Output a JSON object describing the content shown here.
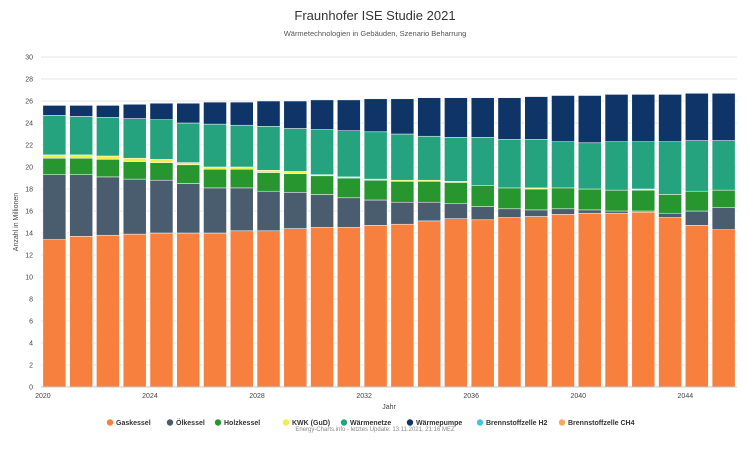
{
  "chart_data": {
    "type": "bar",
    "stacked": true,
    "title": "Fraunhofer ISE Studie 2021",
    "subtitle": "Wärmetechnologien in Gebäuden, Szenario Beharrung",
    "xlabel": "Jahr",
    "ylabel": "Anzahl in Millionen",
    "ylim": [
      0,
      30
    ],
    "yticks": [
      0,
      2,
      4,
      6,
      8,
      10,
      12,
      14,
      16,
      18,
      20,
      22,
      24,
      26,
      28,
      30
    ],
    "xtick_labels": [
      "2020",
      "2024",
      "2028",
      "2032",
      "2036",
      "2040",
      "2044"
    ],
    "grid": true,
    "legend_position": "bottom",
    "categories": [
      "2020",
      "2021",
      "2022",
      "2023",
      "2024",
      "2025",
      "2026",
      "2027",
      "2028",
      "2029",
      "2030",
      "2031",
      "2032",
      "2033",
      "2034",
      "2035",
      "2036",
      "2037",
      "2038",
      "2039",
      "2040",
      "2041",
      "2042",
      "2043",
      "2044",
      "2045"
    ],
    "series": [
      {
        "name": "Gaskessel",
        "color": "#f7803f",
        "values": [
          13.4,
          13.7,
          13.8,
          13.9,
          14.0,
          14.0,
          14.0,
          14.2,
          14.2,
          14.4,
          14.5,
          14.5,
          14.7,
          14.8,
          15.1,
          15.3,
          15.2,
          15.4,
          15.5,
          15.7,
          15.8,
          15.8,
          15.9,
          15.4,
          14.7,
          14.3
        ]
      },
      {
        "name": "Ölkessel",
        "color": "#4a5d6e",
        "values": [
          5.9,
          5.6,
          5.3,
          5.0,
          4.8,
          4.5,
          4.1,
          3.9,
          3.6,
          3.3,
          3.0,
          2.7,
          2.3,
          2.0,
          1.7,
          1.4,
          1.2,
          0.8,
          0.6,
          0.5,
          0.3,
          0.2,
          0.1,
          0.4,
          1.3,
          2.0
        ]
      },
      {
        "name": "Holzkessel",
        "color": "#27962f",
        "values": [
          1.5,
          1.5,
          1.6,
          1.6,
          1.6,
          1.7,
          1.7,
          1.7,
          1.7,
          1.7,
          1.7,
          1.8,
          1.8,
          1.9,
          1.9,
          1.9,
          1.9,
          1.9,
          1.9,
          1.9,
          1.9,
          1.9,
          1.9,
          1.7,
          1.8,
          1.6
        ]
      },
      {
        "name": "KWK (GuD)",
        "color": "#f2ee4a",
        "values": [
          0.3,
          0.3,
          0.3,
          0.3,
          0.3,
          0.2,
          0.2,
          0.2,
          0.2,
          0.2,
          0.1,
          0.1,
          0.1,
          0.1,
          0.1,
          0.1,
          0.0,
          0.0,
          0.1,
          0.0,
          0.0,
          0.0,
          0.1,
          0.0,
          0.0,
          0.0
        ]
      },
      {
        "name": "Wärmenetze",
        "color": "#24a37e",
        "values": [
          3.6,
          3.5,
          3.5,
          3.6,
          3.6,
          3.6,
          3.9,
          3.8,
          4.0,
          3.9,
          4.1,
          4.2,
          4.3,
          4.2,
          4.0,
          4.0,
          4.4,
          4.4,
          4.4,
          4.2,
          4.2,
          4.4,
          4.3,
          4.8,
          4.6,
          4.5
        ]
      },
      {
        "name": "Wärmepumpe",
        "color": "#0e3468",
        "values": [
          0.9,
          1.0,
          1.1,
          1.3,
          1.5,
          1.8,
          2.0,
          2.1,
          2.3,
          2.5,
          2.7,
          2.8,
          3.0,
          3.2,
          3.5,
          3.6,
          3.6,
          3.8,
          3.9,
          4.2,
          4.3,
          4.3,
          4.3,
          4.3,
          4.3,
          4.3
        ]
      },
      {
        "name": "Brennstoffzelle H2",
        "color": "#3ec8e0",
        "values": [
          0,
          0,
          0,
          0,
          0,
          0,
          0,
          0,
          0,
          0,
          0,
          0,
          0,
          0,
          0,
          0,
          0,
          0,
          0,
          0,
          0,
          0,
          0,
          0,
          0,
          0
        ]
      },
      {
        "name": "Brennstoffzelle CH4",
        "color": "#f9a957",
        "values": [
          0,
          0,
          0,
          0,
          0,
          0,
          0,
          0,
          0,
          0,
          0,
          0,
          0,
          0,
          0,
          0,
          0,
          0,
          0,
          0,
          0,
          0,
          0,
          0,
          0,
          0
        ]
      }
    ],
    "credits": "Energy-Charts.info - letztes Update: 13.11.2021, 21:16 MEZ"
  }
}
